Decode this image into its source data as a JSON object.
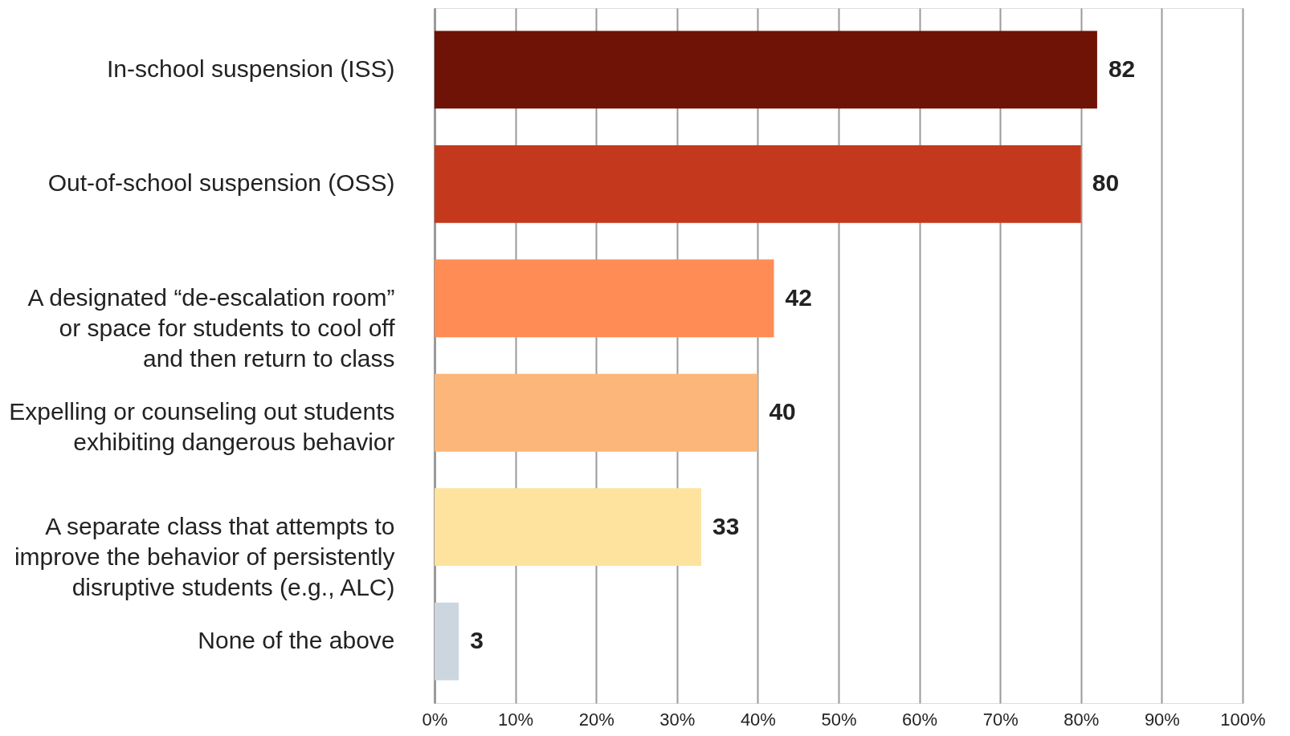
{
  "chart_data": {
    "type": "bar",
    "orientation": "horizontal",
    "categories": [
      "In-school suspension (ISS)",
      "Out-of-school suspension (OSS)",
      "A designated “de-escalation room”\nor space for students to cool off\nand then return to class",
      "Expelling or counseling out students\nexhibiting dangerous behavior",
      "A separate class that attempts to\nimprove the behavior of persistently\ndisruptive students (e.g., ALC)",
      "None of the above"
    ],
    "values": [
      82,
      80,
      42,
      40,
      33,
      3
    ],
    "colors": [
      "#6e1306",
      "#c4391d",
      "#ff8c55",
      "#fdb67a",
      "#fee39e",
      "#ccd6de"
    ],
    "xlim": [
      0,
      100
    ],
    "xticks": [
      {
        "value": 0,
        "label": "0%"
      },
      {
        "value": 10,
        "label": "10%"
      },
      {
        "value": 20,
        "label": "20%"
      },
      {
        "value": 30,
        "label": "30%"
      },
      {
        "value": 40,
        "label": "40%"
      },
      {
        "value": 50,
        "label": "50%"
      },
      {
        "value": 60,
        "label": "60%"
      },
      {
        "value": 70,
        "label": "70%"
      },
      {
        "value": 80,
        "label": "80%"
      },
      {
        "value": 90,
        "label": "90%"
      },
      {
        "value": 100,
        "label": "100%"
      }
    ],
    "grid": "x",
    "data_labels": true
  }
}
